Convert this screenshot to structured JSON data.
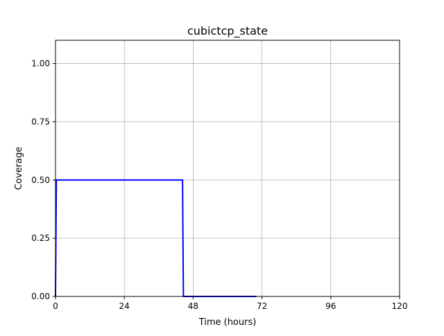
{
  "chart_data": {
    "type": "line",
    "title": "cubictcp_state",
    "xlabel": "Time (hours)",
    "ylabel": "Coverage",
    "xlim": [
      0,
      120
    ],
    "ylim": [
      0,
      1.1
    ],
    "xticks": [
      0,
      24,
      48,
      72,
      96,
      120
    ],
    "xtick_labels": [
      "0",
      "24",
      "48",
      "72",
      "96",
      "120"
    ],
    "yticks": [
      0,
      0.25,
      0.5,
      0.75,
      1.0
    ],
    "ytick_labels": [
      "0.00",
      "0.25",
      "0.50",
      "0.75",
      "1.00"
    ],
    "grid": true,
    "series": [
      {
        "color": "#0000ff",
        "x": [
          0,
          0.3,
          44.3,
          44.6,
          70
        ],
        "y": [
          0,
          0.5,
          0.5,
          0,
          0
        ]
      }
    ]
  }
}
